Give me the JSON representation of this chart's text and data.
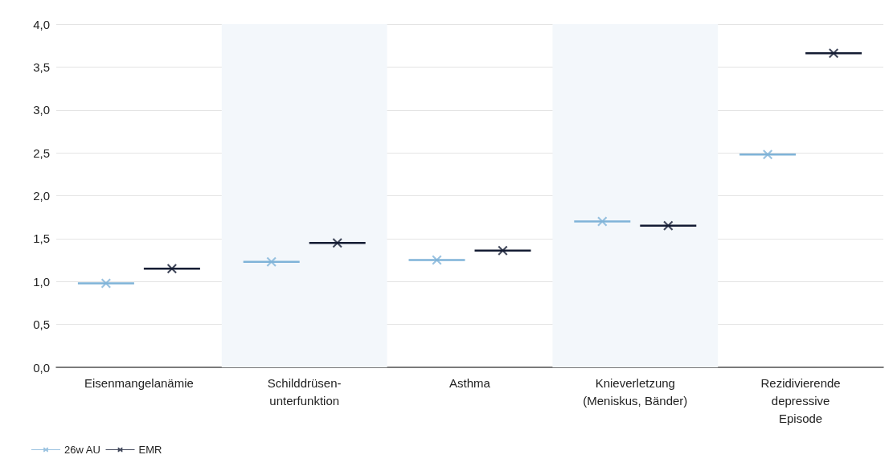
{
  "chart_data": {
    "type": "scatter",
    "categories": [
      "Eisenmangelanämie",
      "Schilddrüsen-\nunterfunktion",
      "Asthma",
      "Knieverletzung\n(Meniskus, Bänder)",
      "Rezidivierende\ndepressive\nEpisode"
    ],
    "series": [
      {
        "name": "26w AU",
        "color": "#7fb3d8",
        "values": [
          0.98,
          1.23,
          1.25,
          1.7,
          2.48
        ]
      },
      {
        "name": "EMR",
        "color": "#141c33",
        "values": [
          1.15,
          1.45,
          1.36,
          1.65,
          3.66
        ]
      }
    ],
    "ylim": [
      0,
      4
    ],
    "yticks": [
      {
        "value": 0,
        "label": "0,0"
      },
      {
        "value": 0.5,
        "label": "0,5"
      },
      {
        "value": 1,
        "label": "1,0"
      },
      {
        "value": 1.5,
        "label": "1,5"
      },
      {
        "value": 2,
        "label": "2,0"
      },
      {
        "value": 2.5,
        "label": "2,5"
      },
      {
        "value": 3,
        "label": "3,0"
      },
      {
        "value": 3.5,
        "label": "3,5"
      },
      {
        "value": 4,
        "label": "4,0"
      }
    ],
    "bands": [
      {
        "axis": "x",
        "from": "Schilddrüsen-\nunterfunktion",
        "to": "Schilddrüsen-\nunterfunktion",
        "color": "#f3f7fb"
      },
      {
        "axis": "x",
        "from": "Knieverletzung\n(Meniskus, Bänder)",
        "to": "Knieverletzung\n(Meniskus, Bänder)",
        "color": "#f3f7fb"
      }
    ],
    "grid": "y",
    "legend": "bottom left",
    "marker": "cross",
    "line_style": "solid"
  }
}
